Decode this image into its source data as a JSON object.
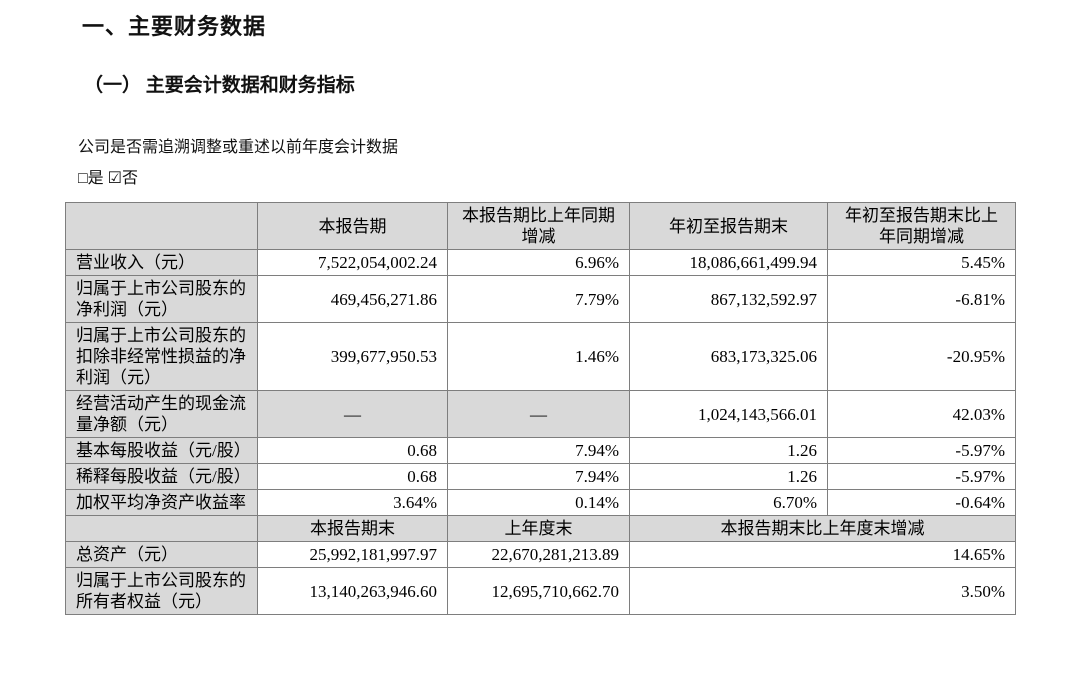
{
  "page": {
    "title": "一、主要财务数据",
    "subtitle": "（一） 主要会计数据和财务指标",
    "question": "公司是否需追溯调整或重述以前年度会计数据",
    "checkbox_yes": "□是",
    "checkbox_no": "☑否"
  },
  "table": {
    "section1": {
      "headers": {
        "col2": "本报告期",
        "col3": "本报告期比上年同期增减",
        "col4": "年初至报告期末",
        "col5": "年初至报告期末比上年同期增减"
      },
      "rows": [
        {
          "label": "营业收入（元）",
          "values": [
            "7,522,054,002.24",
            "6.96%",
            "18,086,661,499.94",
            "5.45%"
          ]
        },
        {
          "label": "归属于上市公司股东的净利润（元）",
          "values": [
            "469,456,271.86",
            "7.79%",
            "867,132,592.97",
            "-6.81%"
          ]
        },
        {
          "label": "归属于上市公司股东的扣除非经常性损益的净利润（元）",
          "values": [
            "399,677,950.53",
            "1.46%",
            "683,173,325.06",
            "-20.95%"
          ]
        },
        {
          "label": "经营活动产生的现金流量净额（元）",
          "values": [
            "—",
            "—",
            "1,024,143,566.01",
            "42.03%"
          ]
        },
        {
          "label": "基本每股收益（元/股）",
          "values": [
            "0.68",
            "7.94%",
            "1.26",
            "-5.97%"
          ]
        },
        {
          "label": "稀释每股收益（元/股）",
          "values": [
            "0.68",
            "7.94%",
            "1.26",
            "-5.97%"
          ]
        },
        {
          "label": "加权平均净资产收益率",
          "values": [
            "3.64%",
            "0.14%",
            "6.70%",
            "-0.64%"
          ]
        }
      ]
    },
    "section2": {
      "headers": {
        "col2": "本报告期末",
        "col3": "上年度末",
        "col45": "本报告期末比上年度末增减"
      },
      "rows": [
        {
          "label": "总资产（元）",
          "values": [
            "25,992,181,997.97",
            "22,670,281,213.89",
            "14.65%"
          ]
        },
        {
          "label": "归属于上市公司股东的所有者权益（元）",
          "values": [
            "13,140,263,946.60",
            "12,695,710,662.70",
            "3.50%"
          ]
        }
      ]
    }
  },
  "colors": {
    "cell_shade": "#d9d9d9",
    "border": "#7e7e7e",
    "text": "#000000"
  }
}
